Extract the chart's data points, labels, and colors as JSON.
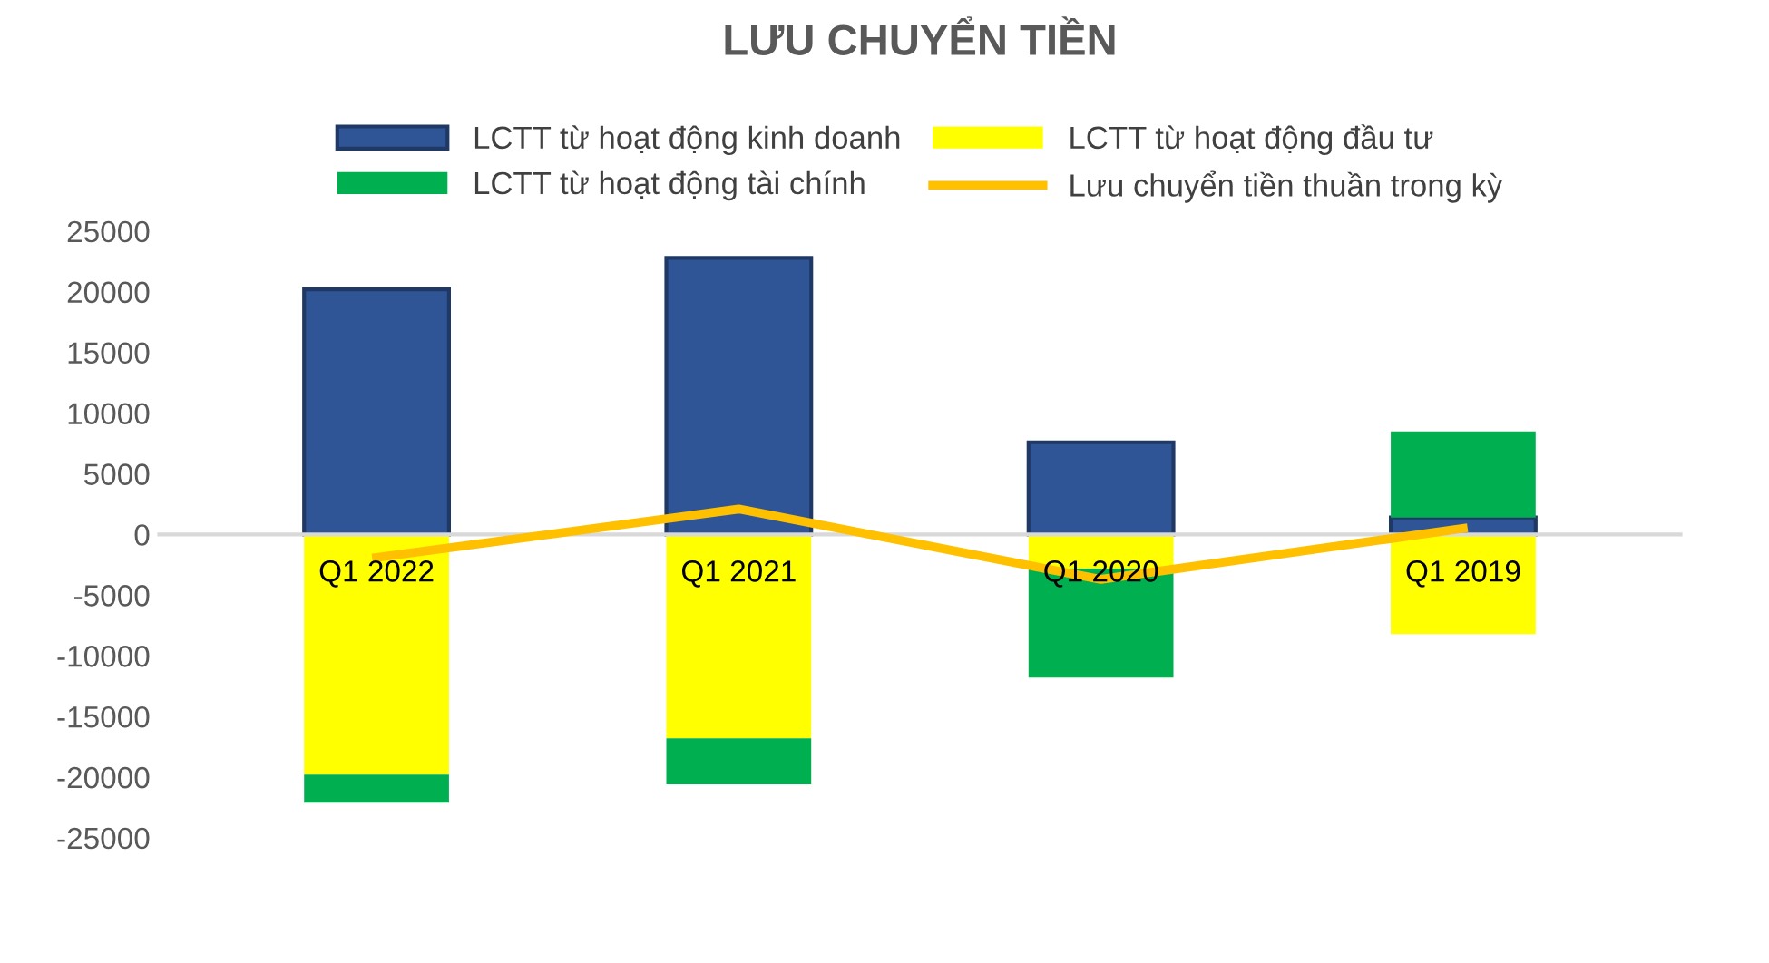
{
  "chart_data": {
    "type": "bar",
    "title": "LƯU CHUYỂN TIỀN",
    "stacked": true,
    "categories": [
      "Q1 2022",
      "Q1 2021",
      "Q1 2020",
      "Q1 2019"
    ],
    "series": [
      {
        "name": "LCTT từ hoạt động kinh doanh",
        "color": "#2f5597",
        "values": [
          20200,
          22800,
          7600,
          1400
        ]
      },
      {
        "name": "LCTT từ hoạt động đầu tư",
        "color": "#ffff00",
        "values": [
          -19800,
          -16800,
          -2800,
          -8200
        ]
      },
      {
        "name": "LCTT từ hoạt động tài chính",
        "color": "#00b050",
        "values": [
          -2300,
          -3800,
          -9000,
          7100
        ]
      },
      {
        "name": "Lưu chuyển tiền thuần trong kỳ",
        "type": "line",
        "color": "#ffc000",
        "values": [
          -1900,
          2100,
          -3700,
          500
        ]
      }
    ],
    "ylim": [
      -25000,
      25000
    ],
    "yticks": [
      -25000,
      -20000,
      -15000,
      -10000,
      -5000,
      0,
      5000,
      10000,
      15000,
      20000,
      25000
    ],
    "grid": false,
    "legend": "top",
    "marker": "none",
    "line_style": "solid"
  }
}
